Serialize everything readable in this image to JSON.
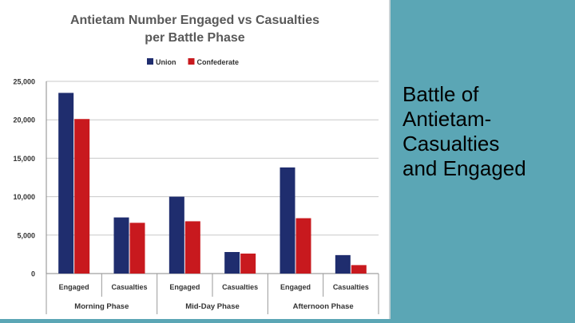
{
  "slide": {
    "title_lines": [
      "Battle of",
      "Antietam-",
      "Casualties",
      "and Engaged"
    ]
  },
  "colors": {
    "background": "#5ba6b5",
    "union": "#1f2d6e",
    "confederate": "#c8191e",
    "title_text": "#595959"
  },
  "chart_data": {
    "type": "bar",
    "title": "Antietam Number Engaged vs Casualties per Battle Phase",
    "title_lines": [
      "Antietam Number Engaged vs Casualties",
      "per Battle Phase"
    ],
    "categories": [
      "Engaged",
      "Casualties",
      "Engaged",
      "Casualties",
      "Engaged",
      "Casualties"
    ],
    "groups": [
      {
        "label": "Morning Phase",
        "span": 2
      },
      {
        "label": "Mid-Day Phase",
        "span": 2
      },
      {
        "label": "Afternoon Phase",
        "span": 2
      }
    ],
    "series": [
      {
        "name": "Union",
        "color": "#1f2d6e",
        "values": [
          23500,
          7300,
          10000,
          2800,
          13800,
          2400
        ]
      },
      {
        "name": "Confederate",
        "color": "#c8191e",
        "values": [
          20100,
          6600,
          6800,
          2600,
          7200,
          1100
        ]
      }
    ],
    "ylim": [
      0,
      25000
    ],
    "yticks": [
      0,
      5000,
      10000,
      15000,
      20000,
      25000
    ],
    "ytick_labels": [
      "0",
      "5,000",
      "10,000",
      "15,000",
      "20,000",
      "25,000"
    ],
    "xlabel": "",
    "ylabel": "",
    "grid": true,
    "legend_position": "top-center"
  }
}
